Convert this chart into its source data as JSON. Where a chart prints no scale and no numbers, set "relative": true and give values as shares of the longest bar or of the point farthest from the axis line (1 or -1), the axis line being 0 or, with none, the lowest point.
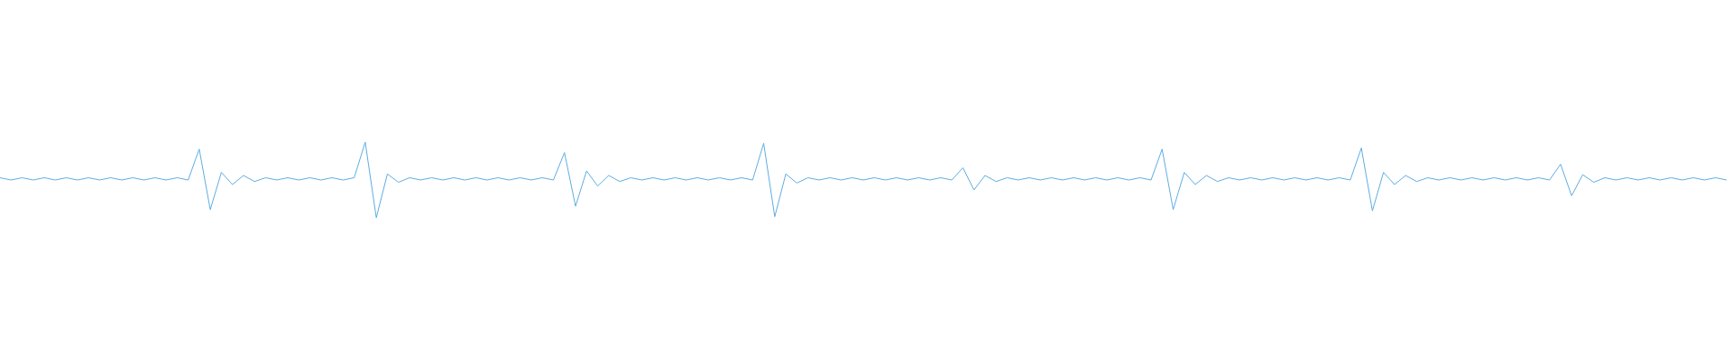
{
  "chart_data": {
    "type": "line",
    "relative": true,
    "tick_labels": false,
    "marker": "none",
    "categories": [
      null,
      null,
      null,
      null,
      null,
      null,
      null,
      null,
      null,
      null,
      null,
      null,
      null,
      null,
      null,
      null,
      null,
      null,
      null,
      null,
      null,
      null,
      null,
      null,
      null,
      null,
      null,
      null,
      null,
      null,
      null,
      null,
      null,
      null,
      null,
      null,
      null,
      null,
      null,
      null,
      null,
      null,
      null,
      null,
      null,
      null,
      null,
      null,
      null,
      null,
      null,
      null,
      null,
      null,
      null,
      null,
      null,
      null,
      null,
      null,
      null,
      null,
      null,
      null,
      null,
      null,
      null,
      null,
      null,
      null,
      null,
      null,
      null,
      null,
      null,
      null,
      null,
      null,
      null,
      null,
      null,
      null,
      null,
      null,
      null,
      null,
      null,
      null,
      null,
      null,
      null,
      null,
      null,
      null,
      null,
      null,
      null,
      null,
      null,
      null,
      null,
      null,
      null,
      null,
      null,
      null,
      null,
      null,
      null,
      null,
      null,
      null,
      null,
      null,
      null,
      null,
      null,
      null,
      null,
      null,
      null,
      null,
      null,
      null,
      null,
      null,
      null,
      null,
      null,
      null,
      null,
      null,
      null,
      null,
      null,
      null,
      null,
      null,
      null,
      null,
      null,
      null,
      null,
      null,
      null,
      null,
      null,
      null,
      null,
      null,
      null,
      null,
      null,
      null,
      null,
      null,
      null
    ],
    "series": [
      {
        "color": "#5dade2",
        "values": [
          0.53,
          0.5,
          0.53,
          0.5,
          0.53,
          0.5,
          0.53,
          0.5,
          0.53,
          0.5,
          0.53,
          0.5,
          0.53,
          0.5,
          0.53,
          0.5,
          0.53,
          0.5,
          0.908,
          0.108,
          0.6,
          0.44,
          0.56,
          0.48,
          0.53,
          0.5,
          0.53,
          0.5,
          0.53,
          0.5,
          0.53,
          0.5,
          0.53,
          1,
          0,
          0.58,
          0.47,
          0.53,
          0.5,
          0.53,
          0.5,
          0.53,
          0.5,
          0.53,
          0.5,
          0.53,
          0.5,
          0.53,
          0.5,
          0.53,
          0.5,
          0.862,
          0.154,
          0.62,
          0.42,
          0.56,
          0.48,
          0.53,
          0.5,
          0.53,
          0.5,
          0.53,
          0.5,
          0.53,
          0.5,
          0.53,
          0.5,
          0.53,
          0.5,
          0.985,
          0.015,
          0.58,
          0.46,
          0.53,
          0.5,
          0.53,
          0.5,
          0.53,
          0.5,
          0.53,
          0.5,
          0.53,
          0.5,
          0.53,
          0.5,
          0.53,
          0.5,
          0.662,
          0.369,
          0.56,
          0.48,
          0.53,
          0.5,
          0.53,
          0.5,
          0.53,
          0.5,
          0.53,
          0.5,
          0.53,
          0.5,
          0.53,
          0.5,
          0.53,
          0.5,
          0.908,
          0.108,
          0.6,
          0.44,
          0.56,
          0.48,
          0.53,
          0.5,
          0.53,
          0.5,
          0.53,
          0.5,
          0.53,
          0.5,
          0.53,
          0.5,
          0.53,
          0.5,
          0.923,
          0.092,
          0.6,
          0.44,
          0.56,
          0.48,
          0.53,
          0.5,
          0.53,
          0.5,
          0.53,
          0.5,
          0.53,
          0.5,
          0.53,
          0.5,
          0.53,
          0.5,
          0.708,
          0.292,
          0.57,
          0.47,
          0.53,
          0.5,
          0.53,
          0.5,
          0.53,
          0.5,
          0.53,
          0.5,
          0.53,
          0.5,
          0.53,
          0.5
        ]
      }
    ]
  }
}
